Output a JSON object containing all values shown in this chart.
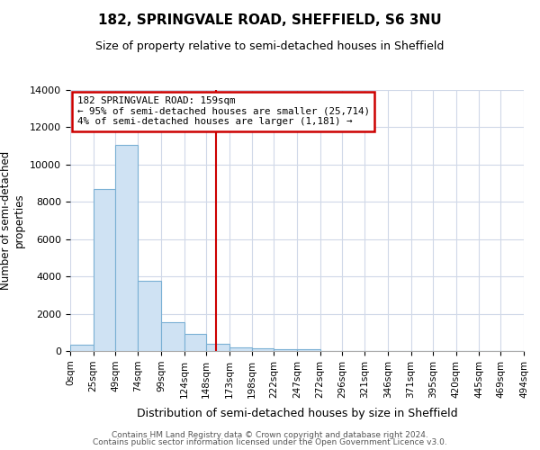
{
  "title1": "182, SPRINGVALE ROAD, SHEFFIELD, S6 3NU",
  "title2": "Size of property relative to semi-detached houses in Sheffield",
  "xlabel": "Distribution of semi-detached houses by size in Sheffield",
  "ylabel": "Number of semi-detached\nproperties",
  "bar_color": "#cfe2f3",
  "bar_edge_color": "#7ab0d4",
  "bin_edges": [
    0,
    25,
    49,
    74,
    99,
    124,
    148,
    173,
    198,
    222,
    247,
    272,
    296,
    321,
    346,
    371,
    395,
    420,
    445,
    469,
    494
  ],
  "bin_labels": [
    "0sqm",
    "25sqm",
    "49sqm",
    "74sqm",
    "99sqm",
    "124sqm",
    "148sqm",
    "173sqm",
    "198sqm",
    "222sqm",
    "247sqm",
    "272sqm",
    "296sqm",
    "321sqm",
    "346sqm",
    "371sqm",
    "395sqm",
    "420sqm",
    "445sqm",
    "469sqm",
    "494sqm"
  ],
  "counts": [
    320,
    8700,
    11050,
    3750,
    1530,
    930,
    390,
    200,
    125,
    95,
    120,
    0,
    0,
    0,
    0,
    0,
    0,
    0,
    0,
    0
  ],
  "property_size": 159,
  "vline_color": "#cc0000",
  "annotation_text1": "182 SPRINGVALE ROAD: 159sqm",
  "annotation_text2": "← 95% of semi-detached houses are smaller (25,714)",
  "annotation_text3": "4% of semi-detached houses are larger (1,181) →",
  "annotation_box_edge_color": "#cc0000",
  "ylim": [
    0,
    14000
  ],
  "yticks": [
    0,
    2000,
    4000,
    6000,
    8000,
    10000,
    12000,
    14000
  ],
  "footer1": "Contains HM Land Registry data © Crown copyright and database right 2024.",
  "footer2": "Contains public sector information licensed under the Open Government Licence v3.0.",
  "background_color": "#ffffff",
  "grid_color": "#d0d8e8"
}
